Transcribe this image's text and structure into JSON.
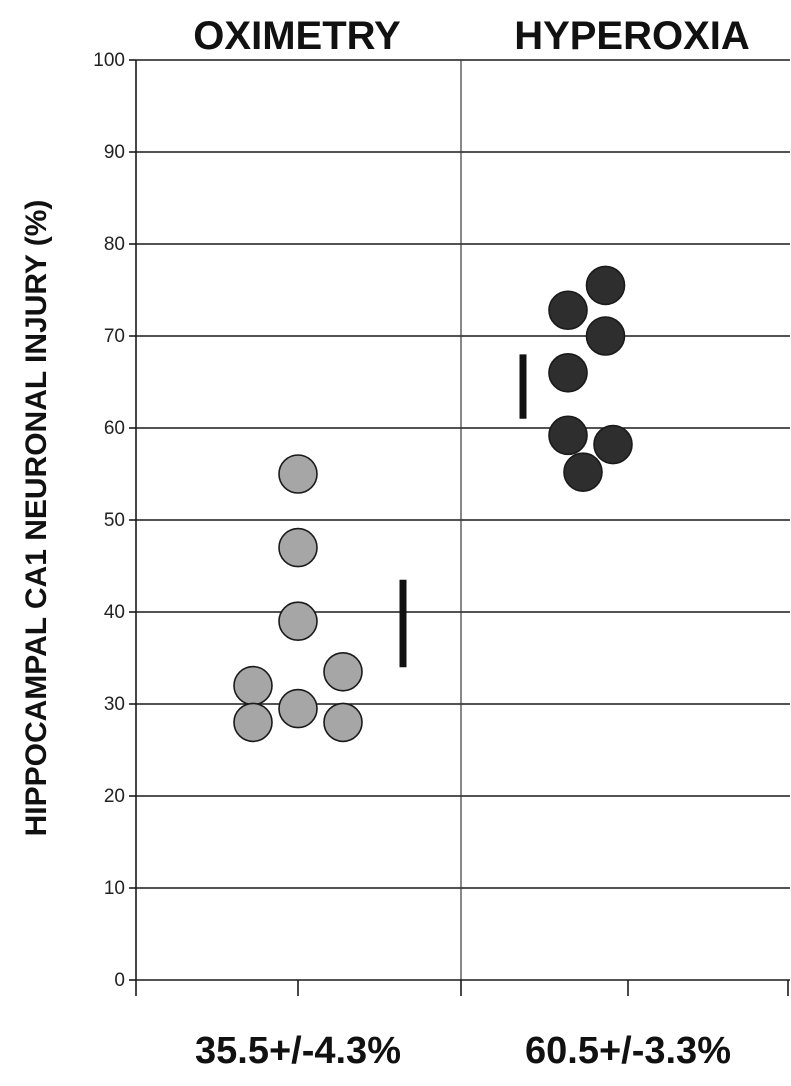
{
  "chart_data": {
    "type": "scatter",
    "title": "",
    "xlabel": "",
    "ylabel": "HIPPOCAMPAL CA1 NEURONAL INJURY (%)",
    "ylim": [
      0,
      100
    ],
    "yticks": [
      0,
      10,
      20,
      30,
      40,
      50,
      60,
      70,
      80,
      90,
      100
    ],
    "grid": true,
    "categories": [
      "OXIMETRY",
      "HYPEROXIA"
    ],
    "summary_labels": [
      "35.5+/-4.3%",
      "60.5+/-3.3%"
    ],
    "series": [
      {
        "category": "OXIMETRY",
        "color": "#a6a6a6",
        "points": [
          {
            "x": -0.3,
            "y": 32.0
          },
          {
            "x": -0.3,
            "y": 28.0
          },
          {
            "x": 0.0,
            "y": 55.0
          },
          {
            "x": 0.0,
            "y": 47.0
          },
          {
            "x": 0.0,
            "y": 39.0
          },
          {
            "x": 0.0,
            "y": 29.5
          },
          {
            "x": 0.3,
            "y": 33.5
          },
          {
            "x": 0.3,
            "y": 28.0
          }
        ],
        "error_bar": {
          "x": 0.7,
          "low": 34.0,
          "high": 43.5
        }
      },
      {
        "category": "HYPEROXIA",
        "color": "#2e2e2e",
        "points": [
          {
            "x": -0.4,
            "y": 72.8
          },
          {
            "x": -0.4,
            "y": 66.0
          },
          {
            "x": -0.4,
            "y": 59.2
          },
          {
            "x": -0.3,
            "y": 55.2
          },
          {
            "x": -0.15,
            "y": 75.5
          },
          {
            "x": -0.15,
            "y": 70.0
          },
          {
            "x": -0.1,
            "y": 58.2
          }
        ],
        "error_bar": {
          "x": -0.7,
          "low": 61.0,
          "high": 68.0
        }
      }
    ]
  }
}
